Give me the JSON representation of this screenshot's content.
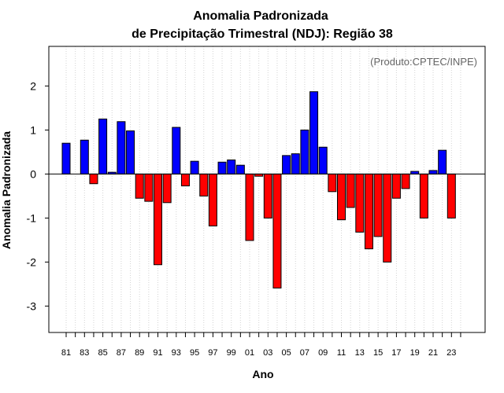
{
  "chart_data": {
    "type": "bar",
    "title": "Anomalia Padronizada",
    "subtitle": "de Precipitação Trimestral (NDJ): Região 38",
    "xlabel": "Ano",
    "ylabel": "Anomalia Padronizada",
    "annotation": "(Produto:CPTEC/INPE)",
    "ylim": [
      -3.6,
      2.9
    ],
    "yticks": [
      -3,
      -2,
      -1,
      0,
      1,
      2
    ],
    "ytick_labels": [
      "-3",
      "-2",
      "-1",
      "0",
      "1",
      "2"
    ],
    "categories": [
      "81",
      "82",
      "83",
      "84",
      "85",
      "86",
      "87",
      "88",
      "89",
      "90",
      "91",
      "92",
      "93",
      "94",
      "95",
      "96",
      "97",
      "98",
      "99",
      "00",
      "01",
      "02",
      "03",
      "04",
      "05",
      "06",
      "07",
      "08",
      "09",
      "10",
      "11",
      "12",
      "13",
      "14",
      "15",
      "16",
      "17",
      "18",
      "19",
      "20",
      "21",
      "22",
      "23",
      "24"
    ],
    "xtick_labels": [
      "81",
      "83",
      "85",
      "87",
      "89",
      "91",
      "93",
      "95",
      "97",
      "99",
      "01",
      "03",
      "05",
      "07",
      "09",
      "11",
      "13",
      "15",
      "17",
      "19",
      "21",
      "23"
    ],
    "values": [
      0.7,
      null,
      0.77,
      -0.22,
      1.25,
      0.04,
      1.19,
      0.98,
      -0.55,
      -0.62,
      -2.06,
      -0.65,
      1.06,
      -0.27,
      0.29,
      -0.5,
      -1.18,
      0.27,
      0.32,
      0.2,
      -1.51,
      -0.05,
      -1.0,
      -2.59,
      0.42,
      0.46,
      1.0,
      1.87,
      0.61,
      -0.4,
      -1.04,
      -0.76,
      -1.32,
      -1.7,
      -1.42,
      -2.0,
      -0.55,
      -0.33,
      0.06,
      -1.0,
      0.08,
      0.54,
      -1.0,
      null
    ],
    "positive_color": "#0000ff",
    "negative_color": "#ff0000",
    "grid": true
  }
}
